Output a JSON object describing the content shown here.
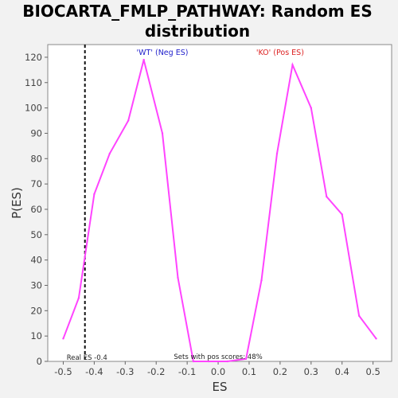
{
  "chart_data": {
    "type": "line",
    "title_line1": "BIOCARTA_FMLP_PATHWAY: Random ES",
    "title_line2": "distribution",
    "xlabel": "ES",
    "ylabel": "P(ES)",
    "xlim": [
      -0.55,
      0.56
    ],
    "ylim": [
      0,
      125
    ],
    "xticks": [
      "-0.5",
      "-0.4",
      "-0.3",
      "-0.2",
      "-0.1",
      "0.0",
      "0.1",
      "0.2",
      "0.3",
      "0.4",
      "0.5"
    ],
    "xtick_values": [
      -0.5,
      -0.4,
      -0.3,
      -0.2,
      -0.1,
      0.0,
      0.1,
      0.2,
      0.3,
      0.4,
      0.5
    ],
    "yticks": [
      "0",
      "10",
      "20",
      "30",
      "40",
      "50",
      "60",
      "70",
      "80",
      "90",
      "100",
      "110",
      "120"
    ],
    "ytick_values": [
      0,
      10,
      20,
      30,
      40,
      50,
      60,
      70,
      80,
      90,
      100,
      110,
      120
    ],
    "grid": false,
    "line_color": "#ff44ff",
    "series": [
      {
        "x": [
          -0.5,
          -0.45,
          -0.4,
          -0.35,
          -0.29,
          -0.24,
          -0.18,
          -0.13,
          -0.08,
          -0.03,
          0.03,
          0.09,
          0.14,
          0.19,
          0.24,
          0.3,
          0.35,
          0.4,
          0.455,
          0.51
        ],
        "values": [
          9,
          25,
          66,
          82,
          95,
          119,
          90,
          33,
          0,
          0,
          0,
          1,
          32,
          82,
          117,
          100,
          65,
          58,
          18,
          9
        ]
      }
    ],
    "real_es": -0.43,
    "real_es_label": "Real ES -0.4",
    "annotation_wt": "'WT' (Neg ES)",
    "annotation_wt_color": "#2222cc",
    "annotation_ko": "'KO' (Pos ES)",
    "annotation_ko_color": "#dd2222",
    "note": "Sets with pos scores: 48%"
  }
}
